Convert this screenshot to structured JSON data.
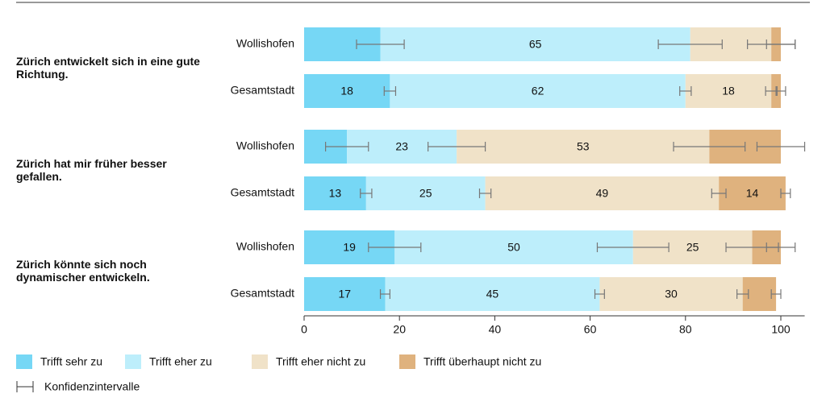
{
  "chart_data": {
    "type": "stacked-bar-horizontal",
    "groups": [
      {
        "label": "Zürich entwickelt sich in eine gute Richtung.",
        "rows": [
          0,
          1
        ]
      },
      {
        "label": "Zürich hat mir früher besser gefallen.",
        "rows": [
          2,
          3
        ]
      },
      {
        "label": "Zürich könnte sich noch dynamischer entwickeln.",
        "rows": [
          4,
          5
        ]
      }
    ],
    "categories": [
      "Wollishofen",
      "Gesamtstadt",
      "Wollishofen",
      "Gesamtstadt",
      "Wollishofen",
      "Gesamtstadt"
    ],
    "series": [
      {
        "name": "Trifft sehr zu",
        "color": "#76d7f5",
        "values": [
          16,
          18,
          9,
          13,
          19,
          17
        ],
        "value_labels": [
          null,
          "18",
          null,
          "13",
          "19",
          "17"
        ],
        "errors": [
          5,
          1.2,
          4.5,
          1.2,
          5.5,
          1
        ]
      },
      {
        "name": "Trifft eher zu",
        "color": "#bdeefb",
        "values": [
          65,
          62,
          23,
          25,
          50,
          45
        ],
        "value_labels": [
          "65",
          "62",
          "23",
          "25",
          "50",
          "45"
        ],
        "errors": [
          6.7,
          1.2,
          6,
          1.2,
          7.5,
          1
        ]
      },
      {
        "name": "Trifft eher nicht zu",
        "color": "#f0e2c8",
        "values": [
          17,
          18,
          53,
          49,
          25,
          30
        ],
        "value_labels": [
          null,
          "18",
          "53",
          "49",
          "25",
          "30"
        ],
        "errors": [
          5,
          1.2,
          7.5,
          1.5,
          5.5,
          1.2
        ]
      },
      {
        "name": "Trifft überhaupt nicht zu",
        "color": "#dfb27e",
        "values": [
          2,
          2,
          15,
          14,
          6,
          7
        ],
        "value_labels": [
          null,
          null,
          null,
          "14",
          null,
          null
        ],
        "errors": [
          3,
          1,
          5,
          1,
          3,
          1
        ]
      }
    ],
    "ci_legend": "Konfidenzintervalle",
    "xlim": [
      0,
      105
    ],
    "xticks": [
      0,
      20,
      40,
      60,
      80,
      100
    ]
  }
}
